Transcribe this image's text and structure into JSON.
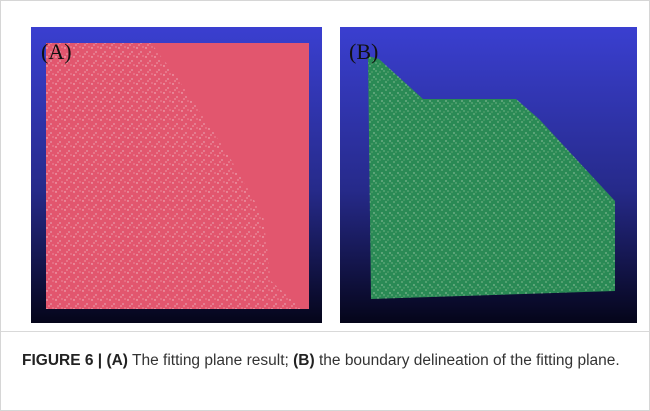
{
  "figure": {
    "panels": [
      {
        "label": "(A)"
      },
      {
        "label": "(B)"
      }
    ],
    "caption": {
      "figure_label": "FIGURE 6 | ",
      "part_a_label": "(A)",
      "part_a_text": " The fitting plane result; ",
      "part_b_label": "(B)",
      "part_b_text": " the boundary delineation of the fitting plane."
    }
  }
}
